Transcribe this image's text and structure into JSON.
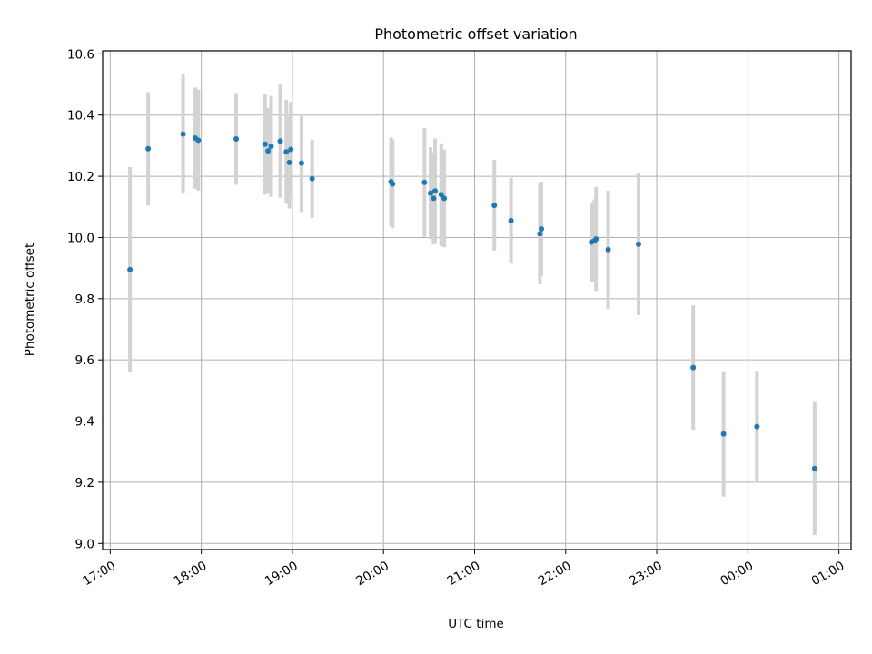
{
  "chart_data": {
    "type": "scatter",
    "title": "Photometric offset variation",
    "xlabel": "UTC time",
    "ylabel": "Photometric offset",
    "x_ticks": [
      "17:00",
      "18:00",
      "19:00",
      "20:00",
      "21:00",
      "22:00",
      "23:00",
      "00:00",
      "01:00"
    ],
    "y_ticks": [
      "9.0",
      "9.2",
      "9.4",
      "9.6",
      "9.8",
      "10.0",
      "10.2",
      "10.4",
      "10.6"
    ],
    "xlim": [
      "16:55",
      "01:08"
    ],
    "ylim": [
      8.98,
      10.61
    ],
    "grid": true,
    "legend": false,
    "marker_color": "#1f77b4",
    "errorbar_color": "#d3d3d3",
    "points": [
      {
        "x": "17:13",
        "y": 9.895,
        "yerr": 0.335
      },
      {
        "x": "17:25",
        "y": 10.29,
        "yerr": 0.185
      },
      {
        "x": "17:48",
        "y": 10.338,
        "yerr": 0.195
      },
      {
        "x": "17:56",
        "y": 10.325,
        "yerr": 0.165
      },
      {
        "x": "17:58",
        "y": 10.318,
        "yerr": 0.165
      },
      {
        "x": "18:23",
        "y": 10.322,
        "yerr": 0.15
      },
      {
        "x": "18:42",
        "y": 10.305,
        "yerr": 0.165
      },
      {
        "x": "18:44",
        "y": 10.283,
        "yerr": 0.14
      },
      {
        "x": "18:46",
        "y": 10.298,
        "yerr": 0.165
      },
      {
        "x": "18:52",
        "y": 10.315,
        "yerr": 0.185
      },
      {
        "x": "18:56",
        "y": 10.28,
        "yerr": 0.17
      },
      {
        "x": "18:58",
        "y": 10.245,
        "yerr": 0.15
      },
      {
        "x": "18:59",
        "y": 10.288,
        "yerr": 0.155
      },
      {
        "x": "19:06",
        "y": 10.243,
        "yerr": 0.16
      },
      {
        "x": "19:13",
        "y": 10.192,
        "yerr": 0.128
      },
      {
        "x": "20:05",
        "y": 10.182,
        "yerr": 0.145
      },
      {
        "x": "20:06",
        "y": 10.175,
        "yerr": 0.145
      },
      {
        "x": "20:27",
        "y": 10.18,
        "yerr": 0.178
      },
      {
        "x": "20:31",
        "y": 10.145,
        "yerr": 0.15
      },
      {
        "x": "20:33",
        "y": 10.128,
        "yerr": 0.15
      },
      {
        "x": "20:34",
        "y": 10.152,
        "yerr": 0.172
      },
      {
        "x": "20:38",
        "y": 10.14,
        "yerr": 0.168
      },
      {
        "x": "20:40",
        "y": 10.128,
        "yerr": 0.16
      },
      {
        "x": "21:13",
        "y": 10.105,
        "yerr": 0.148
      },
      {
        "x": "21:24",
        "y": 10.055,
        "yerr": 0.14
      },
      {
        "x": "21:43",
        "y": 10.012,
        "yerr": 0.165
      },
      {
        "x": "21:44",
        "y": 10.028,
        "yerr": 0.155
      },
      {
        "x": "22:17",
        "y": 9.985,
        "yerr": 0.13
      },
      {
        "x": "22:19",
        "y": 9.99,
        "yerr": 0.135
      },
      {
        "x": "22:20",
        "y": 9.995,
        "yerr": 0.17
      },
      {
        "x": "22:28",
        "y": 9.96,
        "yerr": 0.193
      },
      {
        "x": "22:48",
        "y": 9.978,
        "yerr": 0.232
      },
      {
        "x": "23:24",
        "y": 9.575,
        "yerr": 0.203
      },
      {
        "x": "23:44",
        "y": 9.358,
        "yerr": 0.205
      },
      {
        "x": "00:06",
        "y": 9.382,
        "yerr": 0.182
      },
      {
        "x": "00:44",
        "y": 9.245,
        "yerr": 0.218
      }
    ]
  }
}
